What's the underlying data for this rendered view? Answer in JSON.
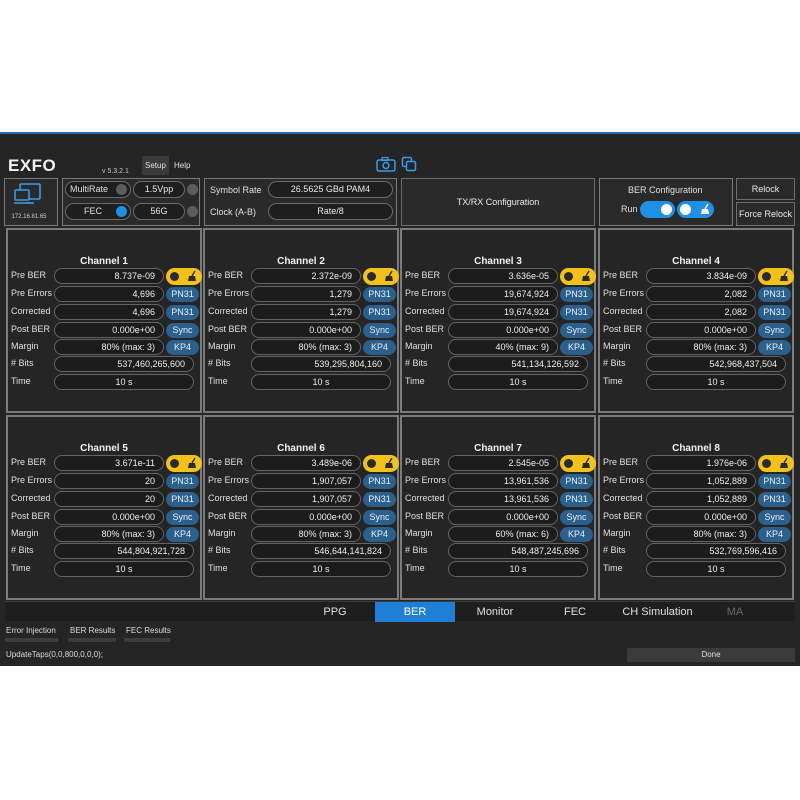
{
  "app": {
    "logo": "EXFO",
    "version": "v 5.3.2.1",
    "menu": [
      "Setup",
      "Help"
    ],
    "ip": "172.16.81.65"
  },
  "settings": {
    "multirate_label": "MultiRate",
    "fec_label": "FEC",
    "vpp_value": "1.5Vpp",
    "rate_value": "56G",
    "symbol_rate_label": "Symbol Rate",
    "symbol_rate_value": "26.5625 GBd PAM4",
    "clock_label": "Clock (A-B)",
    "clock_value": "Rate/8",
    "txrx_label": "TX/RX Configuration",
    "ber_config_label": "BER Configuration",
    "run_label": "Run",
    "relock_label": "Relock",
    "force_relock_label": "Force Relock"
  },
  "row_labels": [
    "Pre BER",
    "Pre Errors",
    "Corrected",
    "Post BER",
    "Margin",
    "# Bits",
    "Time"
  ],
  "channels": [
    {
      "title": "Channel 1",
      "pre_ber": "8.737e-09",
      "pre_errors": "4,696",
      "corrected": "4,696",
      "post_ber": "0.000e+00",
      "margin": "80% (max: 3)",
      "bits": "537,460,265,600",
      "time": "10 s",
      "pn1": "PN31",
      "pn2": "PN31",
      "sync": "Sync",
      "kp": "KP4"
    },
    {
      "title": "Channel 2",
      "pre_ber": "2.372e-09",
      "pre_errors": "1,279",
      "corrected": "1,279",
      "post_ber": "0.000e+00",
      "margin": "80% (max: 3)",
      "bits": "539,295,804,160",
      "time": "10 s",
      "pn1": "PN31",
      "pn2": "PN31",
      "sync": "Sync",
      "kp": "KP4"
    },
    {
      "title": "Channel 3",
      "pre_ber": "3.636e-05",
      "pre_errors": "19,674,924",
      "corrected": "19,674,924",
      "post_ber": "0.000e+00",
      "margin": "40% (max: 9)",
      "bits": "541,134,126,592",
      "time": "10 s",
      "pn1": "PN31",
      "pn2": "PN31",
      "sync": "Sync",
      "kp": "KP4"
    },
    {
      "title": "Channel 4",
      "pre_ber": "3.834e-09",
      "pre_errors": "2,082",
      "corrected": "2,082",
      "post_ber": "0.000e+00",
      "margin": "80% (max: 3)",
      "bits": "542,968,437,504",
      "time": "10 s",
      "pn1": "PN31",
      "pn2": "PN31",
      "sync": "Sync",
      "kp": "KP4"
    },
    {
      "title": "Channel 5",
      "pre_ber": "3.671e-11",
      "pre_errors": "20",
      "corrected": "20",
      "post_ber": "0.000e+00",
      "margin": "80% (max: 3)",
      "bits": "544,804,921,728",
      "time": "10 s",
      "pn1": "PN31",
      "pn2": "PN31",
      "sync": "Sync",
      "kp": "KP4"
    },
    {
      "title": "Channel 6",
      "pre_ber": "3.489e-06",
      "pre_errors": "1,907,057",
      "corrected": "1,907,057",
      "post_ber": "0.000e+00",
      "margin": "80% (max: 3)",
      "bits": "546,644,141,824",
      "time": "10 s",
      "pn1": "PN31",
      "pn2": "PN31",
      "sync": "Sync",
      "kp": "KP4"
    },
    {
      "title": "Channel 7",
      "pre_ber": "2.545e-05",
      "pre_errors": "13,961,536",
      "corrected": "13,961,536",
      "post_ber": "0.000e+00",
      "margin": "60% (max: 6)",
      "bits": "548,487,245,696",
      "time": "10 s",
      "pn1": "PN31",
      "pn2": "PN31",
      "sync": "Sync",
      "kp": "KP4"
    },
    {
      "title": "Channel 8",
      "pre_ber": "1.976e-06",
      "pre_errors": "1,052,889",
      "corrected": "1,052,889",
      "post_ber": "0.000e+00",
      "margin": "80% (max: 3)",
      "bits": "532,769,596,416",
      "time": "10 s",
      "pn1": "PN31",
      "pn2": "PN31",
      "sync": "Sync",
      "kp": "KP4"
    }
  ],
  "tabs": [
    {
      "label": "PPG",
      "state": "normal"
    },
    {
      "label": "BER",
      "state": "active"
    },
    {
      "label": "Monitor",
      "state": "normal"
    },
    {
      "label": "FEC",
      "state": "normal"
    },
    {
      "label": "CH Simulation",
      "state": "normal"
    },
    {
      "label": "MA",
      "state": "disabled"
    }
  ],
  "subtabs": [
    "Error Injection",
    "BER Results",
    "FEC Results"
  ],
  "status": {
    "message": "UpdateTaps(0,0,800,0,0,0);",
    "state": "Done"
  },
  "colors": {
    "accent": "#1e7fd4",
    "toggle_on": "#f2c21a",
    "tag": "#2b5f8c"
  }
}
